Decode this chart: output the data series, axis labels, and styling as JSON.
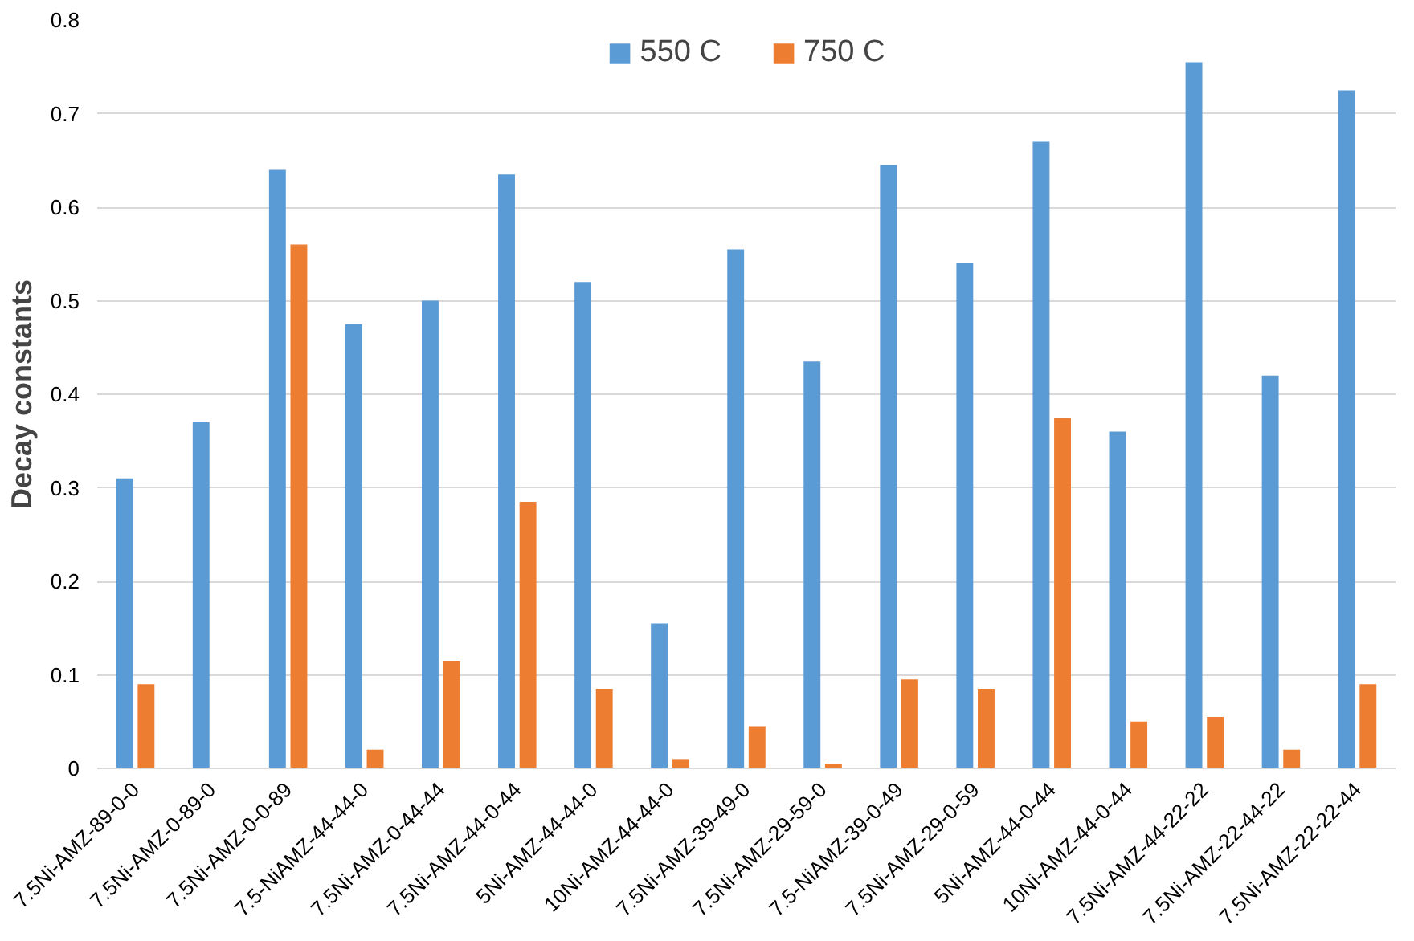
{
  "chart_data": {
    "type": "bar",
    "ylabel": "Decay constants",
    "categories": [
      "7.5Ni-AMZ-89-0-0",
      "7.5Ni-AMZ-0-89-0",
      "7.5Ni-AMZ-0-0-89",
      "7.5-NiAMZ-44-44-0",
      "7.5Ni-AMZ-0-44-44",
      "7.5Ni-AMZ-44-0-44",
      "5Ni-AMZ-44-44-0",
      "10Ni-AMZ-44-44-0",
      "7.5Ni-AMZ-39-49-0",
      "7.5Ni-AMZ-29-59-0",
      "7.5-NiAMZ-39-0-49",
      "7.5Ni-AMZ-29-0-59",
      "5Ni-AMZ-44-0-44",
      "10Ni-AMZ-44-0-44",
      "7.5Ni-AMZ-44-22-22",
      "7.5Ni-AMZ-22-44-22",
      "7.5Ni-AMZ-22-22-44"
    ],
    "series": [
      {
        "name": "550 C",
        "color": "#5b9bd5",
        "values": [
          0.31,
          0.37,
          0.64,
          0.475,
          0.5,
          0.635,
          0.52,
          0.155,
          0.555,
          0.435,
          0.645,
          0.54,
          0.67,
          0.36,
          0.755,
          0.42,
          0.725
        ]
      },
      {
        "name": "750 C",
        "color": "#ed7d31",
        "values": [
          0.09,
          null,
          0.56,
          0.02,
          0.115,
          0.285,
          0.085,
          0.01,
          0.045,
          0.005,
          0.095,
          0.085,
          0.375,
          0.05,
          0.055,
          0.02,
          0.09
        ]
      }
    ],
    "ylim": [
      0,
      0.8
    ],
    "yticks": [
      0,
      0.1,
      0.2,
      0.3,
      0.4,
      0.5,
      0.6,
      0.7,
      0.8
    ],
    "grid": "y",
    "legend": "top"
  }
}
